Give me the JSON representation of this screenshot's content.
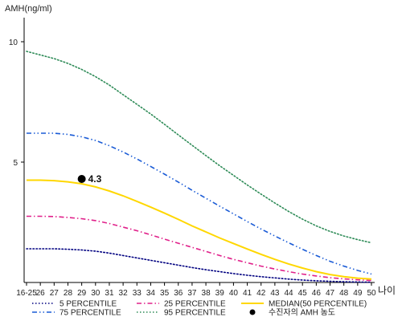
{
  "chart_data": {
    "type": "line",
    "ylabel": "AMH(ng/ml)",
    "xlabel": "나이",
    "x_ticks": [
      "16-25",
      "26",
      "27",
      "28",
      "29",
      "30",
      "31",
      "32",
      "33",
      "34",
      "35",
      "36",
      "37",
      "38",
      "39",
      "40",
      "41",
      "42",
      "43",
      "44",
      "45",
      "46",
      "47",
      "48",
      "49",
      "50"
    ],
    "y_ticks": [
      "10",
      "5"
    ],
    "ylim": [
      0,
      11
    ],
    "series": [
      {
        "name": "5 PERCENTILE",
        "color": "#000080",
        "dash": "dotted",
        "values": [
          1.4,
          1.4,
          1.4,
          1.38,
          1.35,
          1.3,
          1.22,
          1.12,
          1.02,
          0.92,
          0.82,
          0.72,
          0.62,
          0.53,
          0.45,
          0.37,
          0.3,
          0.24,
          0.19,
          0.14,
          0.1,
          0.07,
          0.05,
          0.03,
          0.02,
          0.01
        ]
      },
      {
        "name": "25 PERCENTILE",
        "color": "#e0208a",
        "dash": "dashdot",
        "values": [
          2.75,
          2.75,
          2.74,
          2.7,
          2.65,
          2.57,
          2.45,
          2.3,
          2.15,
          1.98,
          1.8,
          1.63,
          1.46,
          1.29,
          1.12,
          0.96,
          0.82,
          0.68,
          0.56,
          0.45,
          0.35,
          0.27,
          0.2,
          0.15,
          0.11,
          0.08
        ]
      },
      {
        "name": "MEDIAN(50 PERCENTILE)",
        "color": "#ffd700",
        "dash": "solid",
        "values": [
          4.25,
          4.25,
          4.23,
          4.18,
          4.1,
          3.97,
          3.8,
          3.6,
          3.37,
          3.13,
          2.88,
          2.62,
          2.35,
          2.1,
          1.85,
          1.62,
          1.39,
          1.17,
          0.96,
          0.77,
          0.6,
          0.45,
          0.33,
          0.24,
          0.18,
          0.14
        ]
      },
      {
        "name": "75 PERCENTILE",
        "color": "#1a5bd6",
        "dash": "dashdotdot",
        "values": [
          6.2,
          6.2,
          6.2,
          6.15,
          6.05,
          5.9,
          5.68,
          5.42,
          5.13,
          4.82,
          4.5,
          4.17,
          3.83,
          3.5,
          3.17,
          2.85,
          2.53,
          2.22,
          1.93,
          1.65,
          1.38,
          1.12,
          0.88,
          0.68,
          0.5,
          0.35
        ]
      },
      {
        "name": "95 PERCENTILE",
        "color": "#2e8b57",
        "dash": "dotted",
        "values": [
          9.6,
          9.45,
          9.3,
          9.1,
          8.85,
          8.55,
          8.2,
          7.8,
          7.4,
          7.0,
          6.57,
          6.13,
          5.7,
          5.27,
          4.85,
          4.45,
          4.05,
          3.67,
          3.3,
          2.95,
          2.63,
          2.35,
          2.12,
          1.93,
          1.78,
          1.65
        ]
      }
    ],
    "annotations": [
      {
        "x": "29",
        "y": 4.3,
        "label": "4.3",
        "legend": "수진자의 AMH 농도",
        "color": "#000000"
      }
    ],
    "legend_position": "bottom",
    "grid": false
  }
}
